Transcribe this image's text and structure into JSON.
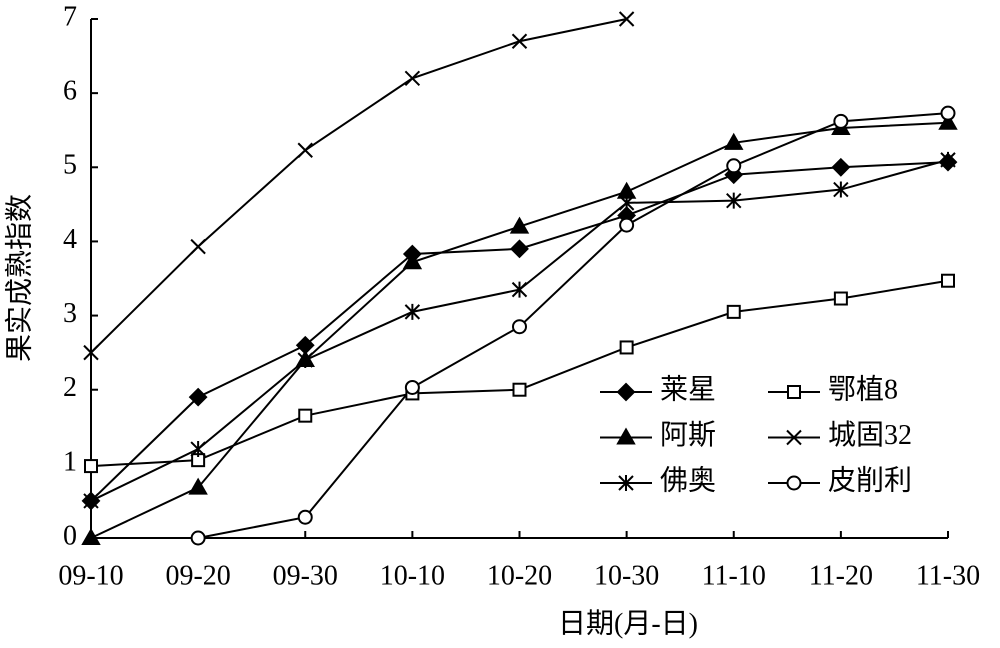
{
  "chart_data": {
    "type": "line",
    "x_label": "日期(月-日)",
    "y_label": "果实成熟指数",
    "categories": [
      "09-10",
      "09-20",
      "09-30",
      "10-10",
      "10-20",
      "10-30",
      "11-10",
      "11-20",
      "11-30"
    ],
    "ylim": [
      0,
      7
    ],
    "yticks": [
      0,
      1,
      2,
      3,
      4,
      5,
      6,
      7
    ],
    "grid": false,
    "legend": "lower right",
    "series": [
      {
        "name": "莱星",
        "color": "#000000",
        "marker": "diamond",
        "values": [
          0.5,
          1.9,
          2.6,
          3.83,
          3.9,
          4.35,
          4.9,
          5.0,
          5.07
        ]
      },
      {
        "name": "鄂植8",
        "color": "#000000",
        "marker": "square-open",
        "values": [
          0.97,
          1.05,
          1.65,
          1.95,
          2.0,
          2.57,
          3.05,
          3.23,
          3.47
        ]
      },
      {
        "name": "阿斯",
        "color": "#000000",
        "marker": "triangle",
        "values": [
          0,
          0.68,
          2.4,
          3.72,
          4.2,
          4.67,
          5.33,
          5.53,
          5.6
        ]
      },
      {
        "name": "城固32",
        "color": "#000000",
        "marker": "x",
        "values": [
          2.5,
          3.93,
          5.23,
          6.2,
          6.7,
          7.0,
          null,
          null,
          null
        ]
      },
      {
        "name": "佛奥",
        "color": "#000000",
        "marker": "asterisk",
        "values": [
          0.5,
          1.2,
          2.4,
          3.05,
          3.35,
          4.52,
          4.55,
          4.7,
          5.1
        ]
      },
      {
        "name": "皮削利",
        "color": "#000000",
        "marker": "circle-open",
        "values": [
          null,
          0,
          0.28,
          2.03,
          2.85,
          4.22,
          5.02,
          5.62,
          5.73
        ]
      }
    ]
  }
}
